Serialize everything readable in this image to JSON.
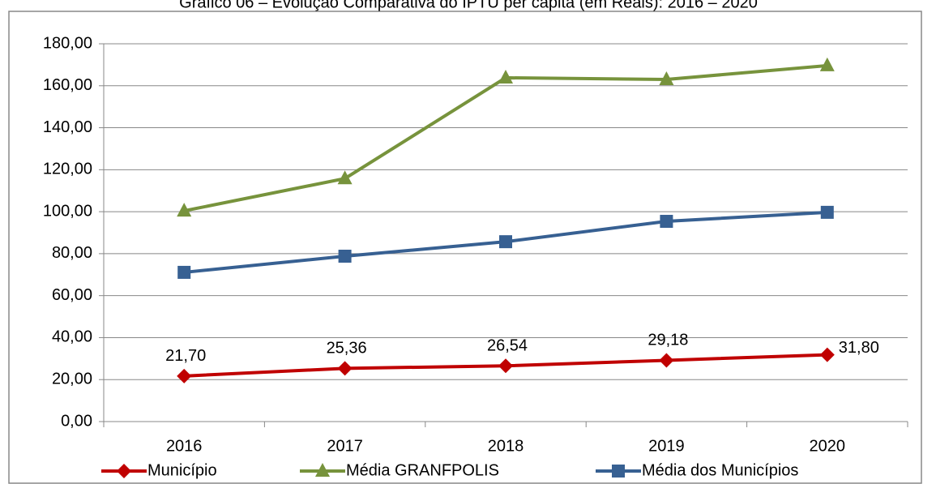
{
  "chart_data": {
    "type": "line",
    "title": "Gráfico 06 – Evolução Comparativa do IPTU per capita (em Reais): 2016 – 2020",
    "categories": [
      "2016",
      "2017",
      "2018",
      "2019",
      "2020"
    ],
    "series": [
      {
        "name": "Município",
        "color": "#c00000",
        "marker": "diamond",
        "values": [
          21.7,
          25.36,
          26.54,
          29.18,
          31.8
        ],
        "value_labels": [
          "21,70",
          "25,36",
          "26,54",
          "29,18",
          "31,80"
        ]
      },
      {
        "name": "Média GRANFPOLIS",
        "color": "#77933c",
        "marker": "triangle",
        "values": [
          100.4,
          115.8,
          163.8,
          163.0,
          169.6
        ]
      },
      {
        "name": "Média dos Municípios",
        "color": "#376092",
        "marker": "square",
        "values": [
          71.1,
          78.8,
          85.7,
          95.4,
          99.7
        ]
      }
    ],
    "ylim": [
      0,
      180
    ],
    "yticks": [
      {
        "value": 0,
        "label": "0,00"
      },
      {
        "value": 20,
        "label": "20,00"
      },
      {
        "value": 40,
        "label": "40,00"
      },
      {
        "value": 60,
        "label": "60,00"
      },
      {
        "value": 80,
        "label": "80,00"
      },
      {
        "value": 100,
        "label": "100,00"
      },
      {
        "value": 120,
        "label": "120,00"
      },
      {
        "value": 140,
        "label": "140,00"
      },
      {
        "value": 160,
        "label": "160,00"
      },
      {
        "value": 180,
        "label": "180,00"
      }
    ],
    "grid": true,
    "legend": "bottom"
  }
}
